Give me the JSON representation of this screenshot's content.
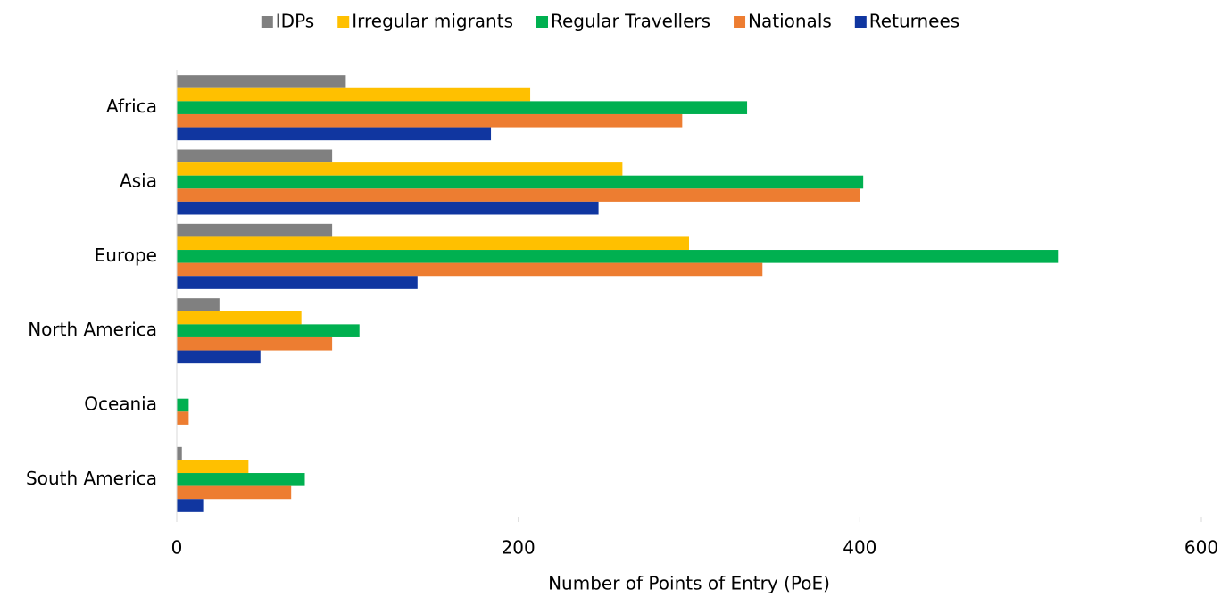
{
  "chart_data": {
    "type": "hbar",
    "categories": [
      "Africa",
      "Asia",
      "Europe",
      "North America",
      "Oceania",
      "South America"
    ],
    "series": [
      {
        "name": "IDPs",
        "color": "#808080",
        "values": [
          99,
          91,
          91,
          25,
          0,
          3
        ]
      },
      {
        "name": "Irregular migrants",
        "color": "#ffc000",
        "values": [
          207,
          261,
          300,
          73,
          0,
          42
        ]
      },
      {
        "name": "Regular Travellers",
        "color": "#00b050",
        "values": [
          334,
          402,
          516,
          107,
          7,
          75
        ]
      },
      {
        "name": "Nationals",
        "color": "#ed7d31",
        "values": [
          296,
          400,
          343,
          91,
          7,
          67
        ]
      },
      {
        "name": "Returnees",
        "color": "#1036a0",
        "values": [
          184,
          247,
          141,
          49,
          0,
          16
        ]
      }
    ],
    "x_label": "Number of Points of Entry (PoE)",
    "xlim": [
      0,
      600
    ],
    "xticks": [
      0,
      200,
      400,
      600
    ],
    "grid": false,
    "legend": "top"
  }
}
